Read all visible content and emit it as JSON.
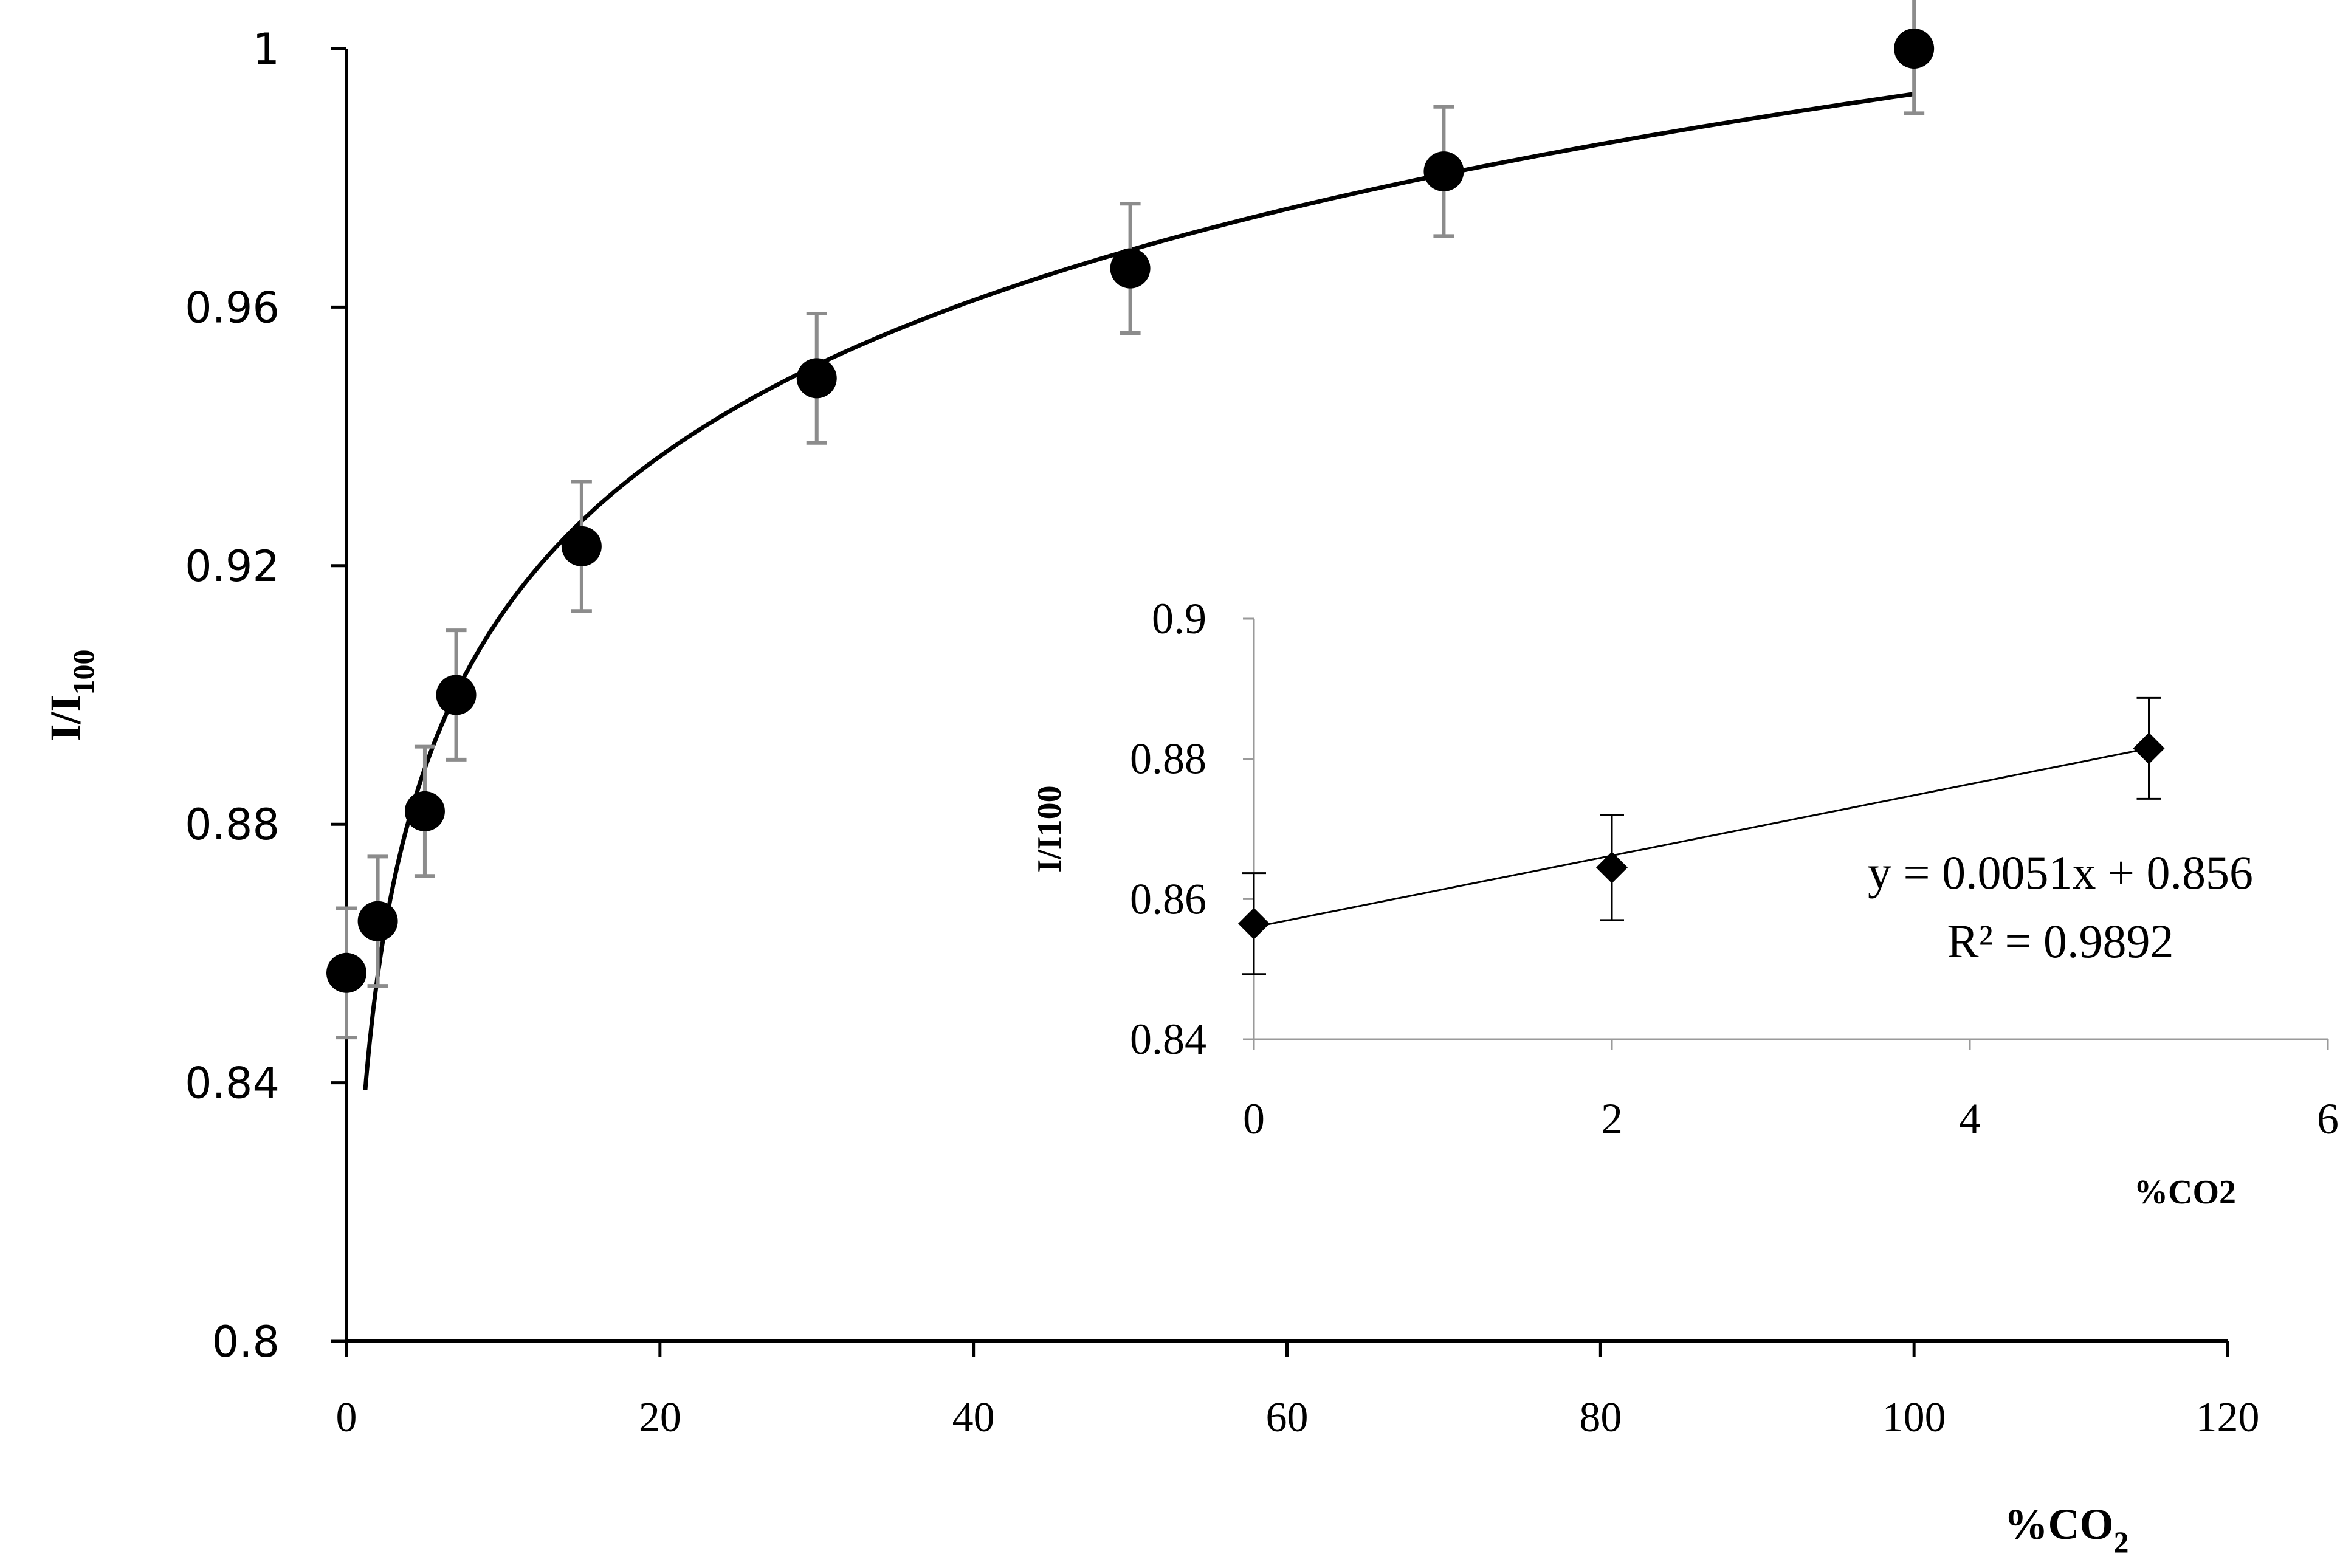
{
  "chart_data": [
    {
      "type": "scatter",
      "xlim": [
        0,
        120
      ],
      "ylim": [
        0.8,
        1.0
      ],
      "x_ticks": [
        "0",
        "20",
        "40",
        "60",
        "80",
        "100",
        "120"
      ],
      "y_ticks": [
        "0.8",
        "0.84",
        "0.88",
        "0.92",
        "0.96",
        "1"
      ],
      "xlabel": {
        "main": "%CO",
        "sub": "2"
      },
      "ylabel": {
        "main": "I/I",
        "sub": "100"
      },
      "grid": false,
      "marker": "circle",
      "marker_color": "#000000",
      "error_bar_color": "#8c8c8c",
      "series": [
        {
          "x": [
            0,
            2,
            5,
            7,
            15,
            30,
            50,
            70,
            100
          ],
          "y": [
            0.857,
            0.865,
            0.882,
            0.9,
            0.923,
            0.949,
            0.966,
            0.981,
            1.0
          ],
          "error": [
            0.01,
            0.01,
            0.01,
            0.01,
            0.01,
            0.01,
            0.01,
            0.01,
            0.01
          ]
        }
      ],
      "trendline": {
        "type": "logarithmic",
        "x_range": [
          1.2,
          100
        ],
        "color": "#000000"
      }
    },
    {
      "type": "scatter",
      "inset": true,
      "xlim": [
        0,
        6
      ],
      "ylim": [
        0.84,
        0.9
      ],
      "x_ticks": [
        "0",
        "2",
        "4",
        "6"
      ],
      "y_ticks": [
        "0.84",
        "0.86",
        "0.88",
        "0.9"
      ],
      "xlabel": "%CO2",
      "ylabel": "I/I100",
      "grid": false,
      "marker": "diamond",
      "marker_color": "#000000",
      "error_bar_color": "#000000",
      "series": [
        {
          "x": [
            0,
            2,
            5
          ],
          "y": [
            0.8565,
            0.8645,
            0.8815
          ],
          "error": [
            0.0072,
            0.0075,
            0.0072
          ]
        }
      ],
      "trendline": {
        "type": "linear",
        "slope": 0.0051,
        "intercept": 0.856,
        "x_range": [
          0,
          5
        ],
        "color": "#000000"
      },
      "annotations": [
        "y = 0.0051x + 0.856",
        "R² = 0.9892"
      ]
    }
  ]
}
